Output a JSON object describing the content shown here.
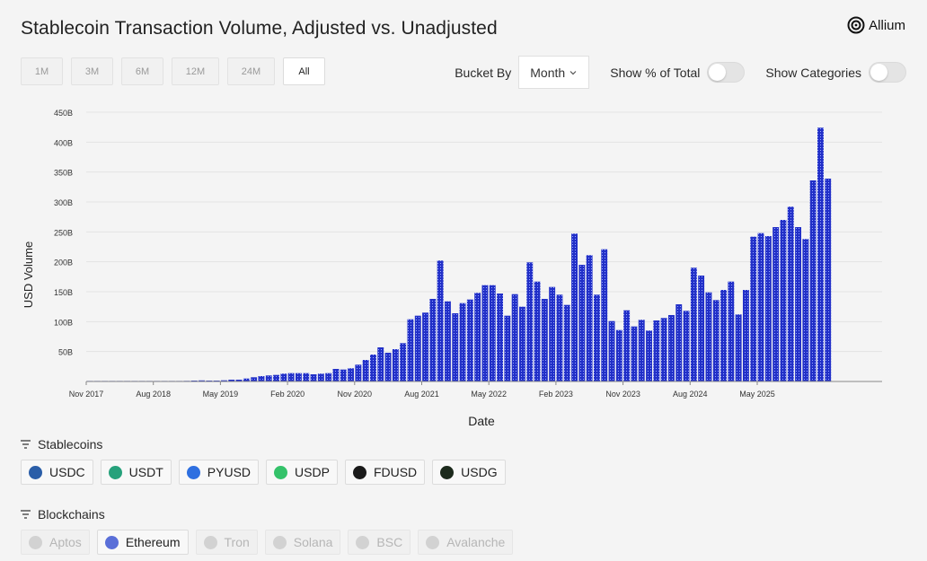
{
  "header": {
    "title": "Stablecoin Transaction Volume, Adjusted vs. Unadjusted",
    "logo_text": "Allium"
  },
  "time_range": {
    "buttons": [
      "1M",
      "3M",
      "6M",
      "12M",
      "24M",
      "All"
    ],
    "selected": "All"
  },
  "controls": {
    "bucket_label": "Bucket By",
    "bucket_value": "Month",
    "show_pct_label": "Show % of Total",
    "show_pct_on": false,
    "show_categories_label": "Show Categories",
    "show_categories_on": false
  },
  "colors": {
    "bar": "#2230c8",
    "bar_dot": "#9aa8ff",
    "grid": "#e3e3e3"
  },
  "chart_data": {
    "type": "bar",
    "xlabel": "Date",
    "ylabel": "USD Volume",
    "ylim": [
      0,
      450
    ],
    "y_ticks": [
      "50B",
      "100B",
      "150B",
      "200B",
      "250B",
      "300B",
      "350B",
      "400B",
      "450B"
    ],
    "y_tick_values": [
      50,
      100,
      150,
      200,
      250,
      300,
      350,
      400,
      450
    ],
    "x_ticks": [
      "Nov 2017",
      "Aug 2018",
      "May 2019",
      "Feb 2020",
      "Nov 2020",
      "Aug 2021",
      "May 2022",
      "Feb 2023",
      "Nov 2023",
      "Aug 2024",
      "May 2025"
    ],
    "start_month": "2017-11",
    "unit": "B USD",
    "values": [
      0.1,
      0.1,
      0.1,
      0.1,
      0.2,
      0.2,
      0.3,
      0.3,
      0.4,
      0.4,
      0.5,
      0.6,
      0.8,
      1,
      1.5,
      1.8,
      1.5,
      1.5,
      2,
      3,
      3,
      5,
      7,
      9,
      10,
      11,
      13,
      14,
      14,
      14,
      12,
      13,
      14,
      21,
      20,
      22,
      28,
      36,
      45,
      57,
      48,
      54,
      64,
      104,
      110,
      115,
      138,
      202,
      134,
      114,
      131,
      137,
      148,
      161,
      161,
      147,
      110,
      146,
      125,
      199,
      167,
      138,
      158,
      145,
      128,
      247,
      195,
      211,
      145,
      221,
      101,
      86,
      119,
      92,
      103,
      85,
      102,
      106,
      111,
      129,
      118,
      190,
      177,
      149,
      136,
      153,
      167,
      112,
      153,
      242,
      248,
      243,
      258,
      270,
      292,
      258,
      238,
      336,
      424,
      339
    ]
  },
  "stablecoins": {
    "title": "Stablecoins",
    "items": [
      {
        "label": "USDC",
        "icon": "usdc-icon",
        "color": "#2a5ea8"
      },
      {
        "label": "USDT",
        "icon": "usdt-icon",
        "color": "#26a17b"
      },
      {
        "label": "PYUSD",
        "icon": "pyusd-icon",
        "color": "#2e6fe0"
      },
      {
        "label": "USDP",
        "icon": "usdp-icon",
        "color": "#34c26a"
      },
      {
        "label": "FDUSD",
        "icon": "fdusd-icon",
        "color": "#1a1a1a"
      },
      {
        "label": "USDG",
        "icon": "usdg-icon",
        "color": "#1c2a1c"
      }
    ]
  },
  "blockchains": {
    "title": "Blockchains",
    "items": [
      {
        "label": "Aptos",
        "icon": "aptos-icon",
        "enabled": false
      },
      {
        "label": "Ethereum",
        "icon": "ethereum-icon",
        "enabled": true
      },
      {
        "label": "Tron",
        "icon": "tron-icon",
        "enabled": false
      },
      {
        "label": "Solana",
        "icon": "solana-icon",
        "enabled": false
      },
      {
        "label": "BSC",
        "icon": "bsc-icon",
        "enabled": false
      },
      {
        "label": "Avalanche",
        "icon": "avalanche-icon",
        "enabled": false
      }
    ]
  }
}
